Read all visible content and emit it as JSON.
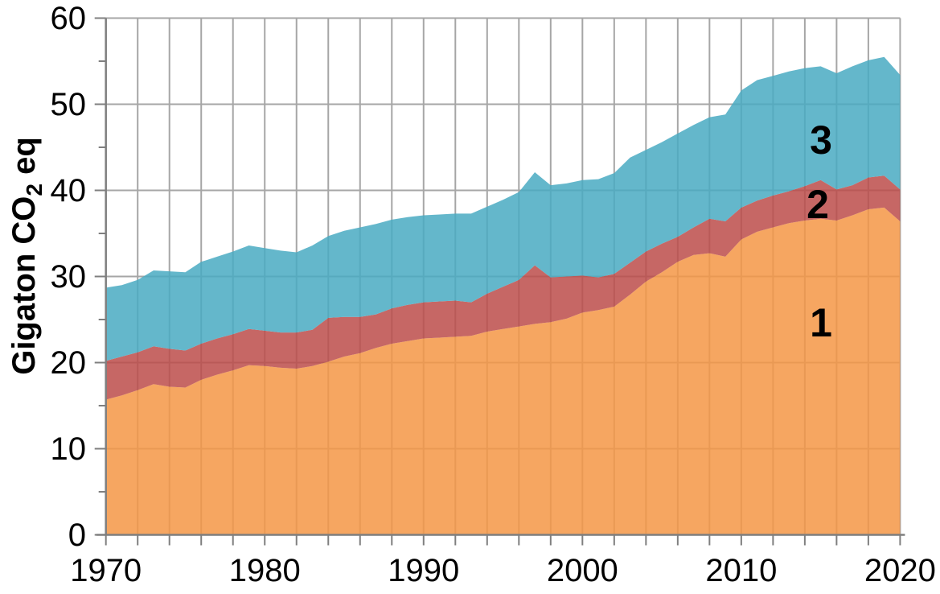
{
  "page": {
    "background": "#FFFFFF"
  },
  "chart_data": {
    "type": "area",
    "stacked": true,
    "title": "",
    "xlabel": "",
    "ylabel": "Gigaton CO₂ eq",
    "ylabel_parts": {
      "prefix": "Gigaton CO",
      "subscript": "2",
      "suffix": " eq"
    },
    "xlim": [
      1970,
      2020
    ],
    "ylim": [
      0,
      60
    ],
    "x": [
      1970,
      1971,
      1972,
      1973,
      1974,
      1975,
      1976,
      1977,
      1978,
      1979,
      1980,
      1981,
      1982,
      1983,
      1984,
      1985,
      1986,
      1987,
      1988,
      1989,
      1990,
      1991,
      1992,
      1993,
      1994,
      1995,
      1996,
      1997,
      1998,
      1999,
      2000,
      2001,
      2002,
      2003,
      2004,
      2005,
      2006,
      2007,
      2008,
      2009,
      2010,
      2011,
      2012,
      2013,
      2014,
      2015,
      2016,
      2017,
      2018,
      2019,
      2020
    ],
    "series": [
      {
        "name": "1",
        "area_label": "1",
        "color": "#F7A65F",
        "fill_rgba": "rgba(245,150,69,0.85)",
        "values": [
          15.7,
          16.2,
          16.8,
          17.5,
          17.2,
          17.1,
          18.0,
          18.6,
          19.1,
          19.7,
          19.6,
          19.4,
          19.3,
          19.6,
          20.1,
          20.7,
          21.1,
          21.7,
          22.2,
          22.5,
          22.8,
          22.9,
          23.0,
          23.1,
          23.6,
          23.9,
          24.2,
          24.5,
          24.7,
          25.1,
          25.8,
          26.1,
          26.5,
          27.9,
          29.4,
          30.5,
          31.7,
          32.5,
          32.7,
          32.3,
          34.3,
          35.2,
          35.7,
          36.2,
          36.5,
          36.7,
          36.5,
          37.1,
          37.8,
          38.0,
          36.4
        ]
      },
      {
        "name": "2",
        "area_label": "2",
        "color": "#C66360",
        "fill_rgba": "rgba(188,76,74,0.85)",
        "values": [
          4.5,
          4.5,
          4.4,
          4.4,
          4.4,
          4.3,
          4.2,
          4.2,
          4.2,
          4.2,
          4.1,
          4.1,
          4.2,
          4.2,
          5.1,
          4.6,
          4.2,
          3.9,
          4.1,
          4.2,
          4.2,
          4.2,
          4.2,
          3.9,
          4.4,
          4.9,
          5.4,
          6.8,
          5.2,
          4.9,
          4.3,
          3.8,
          3.8,
          3.7,
          3.5,
          3.3,
          2.9,
          3.2,
          4.0,
          4.1,
          3.7,
          3.6,
          3.7,
          3.7,
          4.0,
          4.5,
          3.6,
          3.5,
          3.7,
          3.7,
          3.7
        ]
      },
      {
        "name": "3",
        "area_label": "3",
        "color": "#64B7CB",
        "fill_rgba": "rgba(73,170,194,0.85)",
        "values": [
          8.5,
          8.3,
          8.4,
          8.8,
          9.0,
          9.1,
          9.5,
          9.5,
          9.6,
          9.7,
          9.6,
          9.5,
          9.3,
          9.8,
          9.5,
          10.0,
          10.4,
          10.5,
          10.3,
          10.2,
          10.1,
          10.1,
          10.1,
          10.3,
          10.1,
          10.1,
          10.2,
          10.8,
          10.7,
          10.8,
          11.1,
          11.4,
          11.7,
          12.2,
          11.8,
          11.8,
          12.0,
          11.9,
          11.8,
          12.4,
          13.6,
          14.0,
          13.9,
          13.9,
          13.7,
          13.2,
          13.5,
          13.8,
          13.6,
          13.8,
          13.3
        ]
      }
    ],
    "stacked_totals": [
      28.7,
      29.0,
      29.6,
      30.7,
      30.6,
      30.5,
      31.7,
      32.3,
      32.9,
      33.6,
      33.3,
      33.0,
      32.8,
      33.6,
      34.7,
      35.3,
      35.7,
      36.1,
      36.6,
      36.9,
      37.1,
      37.2,
      37.3,
      37.3,
      38.1,
      38.9,
      39.8,
      42.1,
      40.6,
      40.8,
      41.2,
      41.3,
      42.0,
      43.8,
      44.7,
      45.6,
      46.6,
      47.6,
      48.5,
      48.8,
      51.6,
      52.8,
      53.3,
      53.8,
      54.2,
      54.4,
      53.6,
      54.4,
      55.1,
      55.5,
      53.4
    ],
    "yticks_major": [
      0,
      10,
      20,
      30,
      40,
      50,
      60
    ],
    "yticks_minor": [
      5,
      15,
      25,
      35,
      45,
      55
    ],
    "xticks_labeled": [
      1970,
      1980,
      1990,
      2000,
      2010,
      2020
    ],
    "xtick_minor_step_years": 2,
    "grid": {
      "on": true,
      "vertical_step_years": 2,
      "horizontal_step": 10,
      "color": "#A6A6A6"
    },
    "axis_color": "#7F7F7F",
    "legend": "none (areas labeled inline with 1, 2, 3)",
    "area_labels": [
      {
        "text": "1"
      },
      {
        "text": "2"
      },
      {
        "text": "3"
      }
    ]
  }
}
